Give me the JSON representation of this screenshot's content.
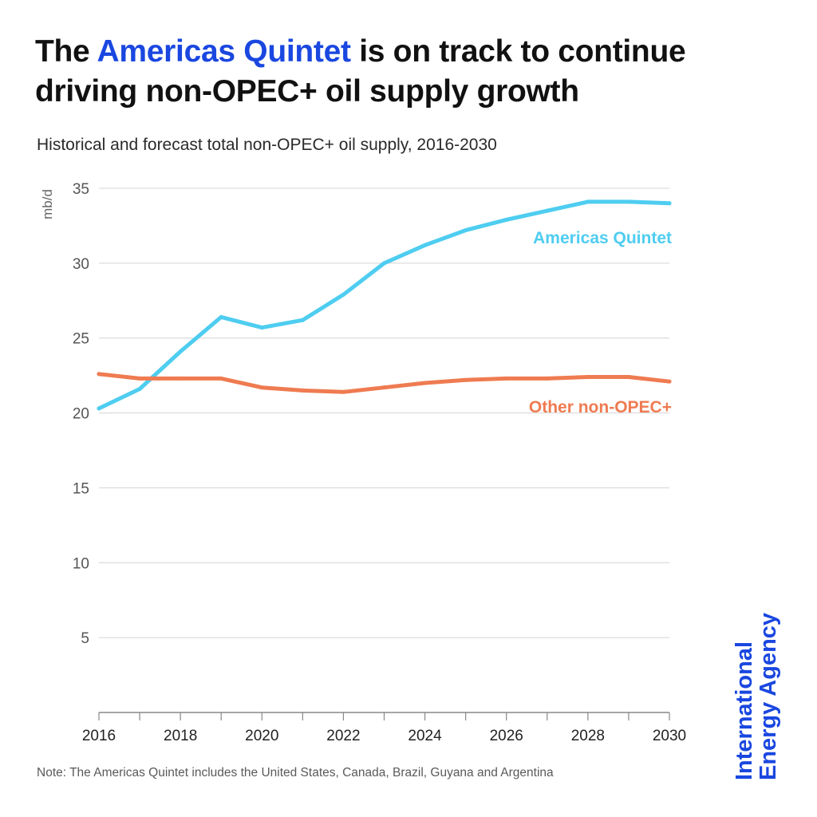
{
  "header": {
    "title_pre": "The ",
    "title_highlight": "Americas Quintet",
    "title_post": " is on track to continue driving non-OPEC+ oil supply growth",
    "subtitle": "Historical and forecast total non-OPEC+ oil supply, 2016-2030"
  },
  "note": "Note: The Americas Quintet includes the United States, Canada, Brazil, Guyana and Argentina",
  "logo": {
    "line1": "International",
    "line2": "Energy Agency"
  },
  "colors": {
    "quintet": "#4ecdf0",
    "other": "#ef7b51",
    "highlight": "#1a47e0",
    "grid": "#d4d4d4",
    "axis": "#888888"
  },
  "chart_data": {
    "type": "line",
    "ylabel": "mb/d",
    "xlabel": "",
    "ylim": [
      0,
      35
    ],
    "yticks": [
      5,
      10,
      15,
      20,
      25,
      30,
      35
    ],
    "xlim": [
      2016,
      2030
    ],
    "xtick_labels": [
      2016,
      2018,
      2020,
      2022,
      2024,
      2026,
      2028,
      2030
    ],
    "x": [
      2016,
      2017,
      2018,
      2019,
      2020,
      2021,
      2022,
      2023,
      2024,
      2025,
      2026,
      2027,
      2028,
      2029,
      2030
    ],
    "grid": "horizontal",
    "legend": "inline labels at right end of lines",
    "series": [
      {
        "name": "Americas Quintet",
        "color": "#4ecdf0",
        "values": [
          20.3,
          21.6,
          24.1,
          26.4,
          25.7,
          26.2,
          27.9,
          30.0,
          31.2,
          32.2,
          32.9,
          33.5,
          34.1,
          34.1,
          34.0
        ]
      },
      {
        "name": "Other non-OPEC+",
        "color": "#ef7b51",
        "values": [
          22.6,
          22.3,
          22.3,
          22.3,
          21.7,
          21.5,
          21.4,
          21.7,
          22.0,
          22.2,
          22.3,
          22.3,
          22.4,
          22.4,
          22.1
        ]
      }
    ]
  }
}
